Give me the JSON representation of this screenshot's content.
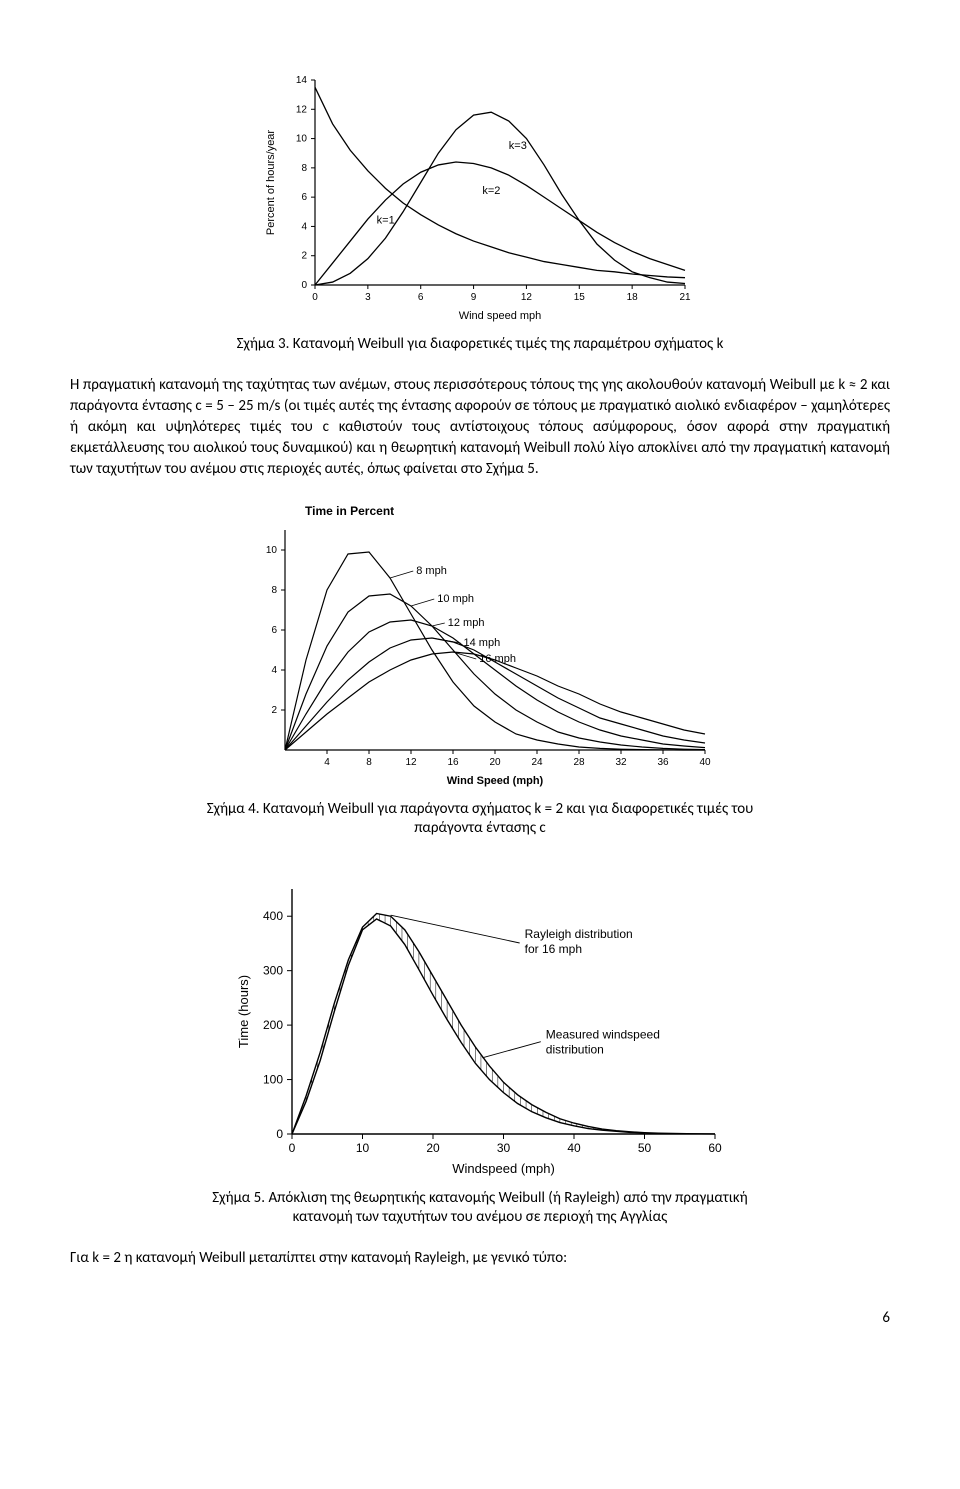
{
  "chart1": {
    "type": "line",
    "xlim": [
      0,
      21
    ],
    "ylim": [
      0,
      14
    ],
    "xticks": [
      0,
      3,
      6,
      9,
      12,
      15,
      18,
      21
    ],
    "yticks": [
      0,
      2,
      4,
      6,
      8,
      10,
      12,
      14
    ],
    "xlabel": "Wind speed mph",
    "ylabel": "Percent of hours/year",
    "stroke": "#000000",
    "bg": "#ffffff",
    "font_size": 11,
    "series": {
      "k1": {
        "label": "k=1",
        "label_x": 3.5,
        "label_y": 4.2,
        "pts": [
          [
            0,
            13.5
          ],
          [
            1,
            11
          ],
          [
            2,
            9.2
          ],
          [
            3,
            7.8
          ],
          [
            4,
            6.6
          ],
          [
            5,
            5.6
          ],
          [
            6,
            4.8
          ],
          [
            7,
            4.1
          ],
          [
            8,
            3.5
          ],
          [
            9,
            3.0
          ],
          [
            10,
            2.6
          ],
          [
            11,
            2.2
          ],
          [
            12,
            1.9
          ],
          [
            13,
            1.6
          ],
          [
            14,
            1.4
          ],
          [
            15,
            1.2
          ],
          [
            16,
            1.0
          ],
          [
            17,
            0.9
          ],
          [
            18,
            0.75
          ],
          [
            19,
            0.65
          ],
          [
            20,
            0.55
          ],
          [
            21,
            0.5
          ]
        ]
      },
      "k2": {
        "label": "k=2",
        "label_x": 9.5,
        "label_y": 6.2,
        "pts": [
          [
            0,
            0
          ],
          [
            1,
            1.5
          ],
          [
            2,
            3.0
          ],
          [
            3,
            4.5
          ],
          [
            4,
            5.8
          ],
          [
            5,
            6.9
          ],
          [
            6,
            7.7
          ],
          [
            7,
            8.2
          ],
          [
            8,
            8.4
          ],
          [
            9,
            8.3
          ],
          [
            10,
            8.0
          ],
          [
            11,
            7.5
          ],
          [
            12,
            6.8
          ],
          [
            13,
            6.0
          ],
          [
            14,
            5.2
          ],
          [
            15,
            4.4
          ],
          [
            16,
            3.6
          ],
          [
            17,
            2.9
          ],
          [
            18,
            2.3
          ],
          [
            19,
            1.8
          ],
          [
            20,
            1.4
          ],
          [
            21,
            1.0
          ]
        ]
      },
      "k3": {
        "label": "k=3",
        "label_x": 11,
        "label_y": 9.3,
        "pts": [
          [
            0,
            0
          ],
          [
            1,
            0.2
          ],
          [
            2,
            0.8
          ],
          [
            3,
            1.8
          ],
          [
            4,
            3.2
          ],
          [
            5,
            5.0
          ],
          [
            6,
            7.0
          ],
          [
            7,
            9.0
          ],
          [
            8,
            10.6
          ],
          [
            9,
            11.6
          ],
          [
            10,
            11.8
          ],
          [
            11,
            11.2
          ],
          [
            12,
            10.0
          ],
          [
            13,
            8.2
          ],
          [
            14,
            6.2
          ],
          [
            15,
            4.4
          ],
          [
            16,
            2.8
          ],
          [
            17,
            1.7
          ],
          [
            18,
            0.9
          ],
          [
            19,
            0.5
          ],
          [
            20,
            0.2
          ],
          [
            21,
            0.1
          ]
        ]
      }
    }
  },
  "caption1": "Σχήμα 3. Κατανομή Weibull για διαφορετικές τιμές της παραμέτρου σχήματος k",
  "para1": "Η πραγματική κατανομή της ταχύτητας των ανέμων, στους περισσότερους τόπους της γης ακολουθούν κατανομή Weibull με k ≈ 2 και παράγοντα έντασης c = 5 – 25 m/s (οι τιμές αυτές της έντασης αφορούν σε τόπους με πραγματικό αιολικό ενδιαφέρον – χαμηλότερες ή ακόμη και υψηλότερες τιμές του c καθιστούν τους αντίστοιχους τόπους ασύμφορους, όσον αφορά στην πραγματική εκμετάλλευσης του αιολικού τους δυναμικού) και η θεωρητική κατανομή Weibull πολύ λίγο αποκλίνει από την πραγματική κατανομή των ταχυτήτων του ανέμου στις περιοχές αυτές, όπως φαίνεται στο Σχήμα 5.",
  "chart2": {
    "type": "line",
    "title": "Time in Percent",
    "xlim": [
      0,
      40
    ],
    "ylim": [
      0,
      11
    ],
    "xticks": [
      4,
      8,
      12,
      16,
      20,
      24,
      28,
      32,
      36,
      40
    ],
    "yticks": [
      2,
      4,
      6,
      8,
      10
    ],
    "xlabel": "Wind Speed (mph)",
    "stroke": "#000000",
    "bg": "#ffffff",
    "font_size": 11,
    "series": {
      "c8": {
        "label": "8 mph",
        "label_x": 12.5,
        "label_y": 8.8,
        "pts": [
          [
            0,
            0
          ],
          [
            2,
            4.5
          ],
          [
            4,
            8.0
          ],
          [
            6,
            9.8
          ],
          [
            8,
            9.9
          ],
          [
            10,
            8.6
          ],
          [
            12,
            6.8
          ],
          [
            14,
            5.0
          ],
          [
            16,
            3.4
          ],
          [
            18,
            2.2
          ],
          [
            20,
            1.4
          ],
          [
            22,
            0.8
          ],
          [
            24,
            0.5
          ],
          [
            26,
            0.3
          ],
          [
            28,
            0.15
          ],
          [
            30,
            0.08
          ],
          [
            32,
            0.04
          ],
          [
            34,
            0.02
          ],
          [
            36,
            0.01
          ],
          [
            38,
            0
          ],
          [
            40,
            0
          ]
        ]
      },
      "c10": {
        "label": "10 mph",
        "label_x": 14.5,
        "label_y": 7.4,
        "pts": [
          [
            0,
            0
          ],
          [
            2,
            2.8
          ],
          [
            4,
            5.2
          ],
          [
            6,
            6.9
          ],
          [
            8,
            7.7
          ],
          [
            10,
            7.8
          ],
          [
            12,
            7.2
          ],
          [
            14,
            6.2
          ],
          [
            16,
            5.0
          ],
          [
            18,
            3.8
          ],
          [
            20,
            2.8
          ],
          [
            22,
            2.0
          ],
          [
            24,
            1.4
          ],
          [
            26,
            0.9
          ],
          [
            28,
            0.6
          ],
          [
            30,
            0.4
          ],
          [
            32,
            0.25
          ],
          [
            34,
            0.15
          ],
          [
            36,
            0.08
          ],
          [
            38,
            0.04
          ],
          [
            40,
            0.02
          ]
        ]
      },
      "c12": {
        "label": "12 mph",
        "label_x": 15.5,
        "label_y": 6.2,
        "pts": [
          [
            0,
            0
          ],
          [
            2,
            1.8
          ],
          [
            4,
            3.5
          ],
          [
            6,
            4.9
          ],
          [
            8,
            5.9
          ],
          [
            10,
            6.4
          ],
          [
            12,
            6.5
          ],
          [
            14,
            6.2
          ],
          [
            16,
            5.6
          ],
          [
            18,
            4.8
          ],
          [
            20,
            4.0
          ],
          [
            22,
            3.2
          ],
          [
            24,
            2.5
          ],
          [
            26,
            1.9
          ],
          [
            28,
            1.4
          ],
          [
            30,
            1.0
          ],
          [
            32,
            0.7
          ],
          [
            34,
            0.5
          ],
          [
            36,
            0.3
          ],
          [
            38,
            0.2
          ],
          [
            40,
            0.12
          ]
        ]
      },
      "c14": {
        "label": "14 mph",
        "label_x": 17,
        "label_y": 5.2,
        "pts": [
          [
            0,
            0
          ],
          [
            2,
            1.2
          ],
          [
            4,
            2.4
          ],
          [
            6,
            3.5
          ],
          [
            8,
            4.4
          ],
          [
            10,
            5.1
          ],
          [
            12,
            5.5
          ],
          [
            14,
            5.6
          ],
          [
            16,
            5.4
          ],
          [
            18,
            5.0
          ],
          [
            20,
            4.4
          ],
          [
            22,
            3.8
          ],
          [
            24,
            3.2
          ],
          [
            26,
            2.6
          ],
          [
            28,
            2.1
          ],
          [
            30,
            1.6
          ],
          [
            32,
            1.3
          ],
          [
            34,
            1.0
          ],
          [
            36,
            0.7
          ],
          [
            38,
            0.5
          ],
          [
            40,
            0.35
          ]
        ]
      },
      "c16": {
        "label": "16 mph",
        "label_x": 18.5,
        "label_y": 4.4,
        "pts": [
          [
            0,
            0
          ],
          [
            2,
            0.9
          ],
          [
            4,
            1.8
          ],
          [
            6,
            2.6
          ],
          [
            8,
            3.4
          ],
          [
            10,
            4.0
          ],
          [
            12,
            4.5
          ],
          [
            14,
            4.8
          ],
          [
            16,
            4.9
          ],
          [
            18,
            4.8
          ],
          [
            20,
            4.5
          ],
          [
            22,
            4.1
          ],
          [
            24,
            3.7
          ],
          [
            26,
            3.2
          ],
          [
            28,
            2.8
          ],
          [
            30,
            2.3
          ],
          [
            32,
            1.9
          ],
          [
            34,
            1.6
          ],
          [
            36,
            1.3
          ],
          [
            38,
            1.0
          ],
          [
            40,
            0.8
          ]
        ]
      }
    }
  },
  "caption2_l1": "Σχήμα 4. Κατανομή Weibull για παράγοντα σχήματος k = 2 και για διαφορετικές τιμές του",
  "caption2_l2": "παράγοντα έντασης c",
  "chart3": {
    "type": "line",
    "xlim": [
      0,
      60
    ],
    "ylim": [
      0,
      450
    ],
    "xticks": [
      0,
      10,
      20,
      30,
      40,
      50,
      60
    ],
    "yticks": [
      0,
      100,
      200,
      300,
      400
    ],
    "xlabel": "Windspeed (mph)",
    "ylabel": "Time (hours)",
    "stroke": "#000000",
    "bg": "#ffffff",
    "font_size": 11,
    "annotations": {
      "ray": {
        "l1": "Rayleigh distribution",
        "l2": "for 16 mph"
      },
      "meas": {
        "l1": "Measured windspeed",
        "l2": "distribution"
      }
    },
    "rayleigh": [
      [
        0,
        0
      ],
      [
        2,
        70
      ],
      [
        4,
        150
      ],
      [
        6,
        240
      ],
      [
        8,
        320
      ],
      [
        10,
        380
      ],
      [
        12,
        405
      ],
      [
        14,
        400
      ],
      [
        16,
        375
      ],
      [
        18,
        335
      ],
      [
        20,
        290
      ],
      [
        22,
        245
      ],
      [
        24,
        200
      ],
      [
        26,
        160
      ],
      [
        28,
        125
      ],
      [
        30,
        95
      ],
      [
        32,
        72
      ],
      [
        34,
        54
      ],
      [
        36,
        40
      ],
      [
        38,
        28
      ],
      [
        40,
        20
      ],
      [
        42,
        14
      ],
      [
        44,
        9
      ],
      [
        46,
        6
      ],
      [
        48,
        4
      ],
      [
        50,
        2.5
      ],
      [
        52,
        1.5
      ],
      [
        54,
        1
      ],
      [
        56,
        0.5
      ],
      [
        58,
        0.3
      ],
      [
        60,
        0.1
      ]
    ],
    "measured": [
      [
        0,
        0
      ],
      [
        2,
        60
      ],
      [
        4,
        135
      ],
      [
        6,
        225
      ],
      [
        8,
        310
      ],
      [
        10,
        375
      ],
      [
        12,
        395
      ],
      [
        14,
        382
      ],
      [
        16,
        348
      ],
      [
        18,
        302
      ],
      [
        20,
        255
      ],
      [
        22,
        210
      ],
      [
        24,
        168
      ],
      [
        26,
        130
      ],
      [
        28,
        100
      ],
      [
        30,
        76
      ],
      [
        32,
        56
      ],
      [
        34,
        41
      ],
      [
        36,
        30
      ],
      [
        38,
        21
      ],
      [
        40,
        15
      ],
      [
        42,
        10
      ],
      [
        44,
        7
      ],
      [
        46,
        5
      ],
      [
        48,
        3
      ],
      [
        50,
        2
      ]
    ]
  },
  "caption3_l1": "Σχήμα 5. Απόκλιση της θεωρητικής κατανομής Weibull (ή Rayleigh) από την πραγματική",
  "caption3_l2": "κατανομή των ταχυτήτων του ανέμου σε περιοχή της Αγγλίας",
  "para2": "Για k = 2  η κατανομή Weibull μεταπίπτει στην κατανομή Rayleigh, με γενικό τύπο:",
  "page_number": "6"
}
